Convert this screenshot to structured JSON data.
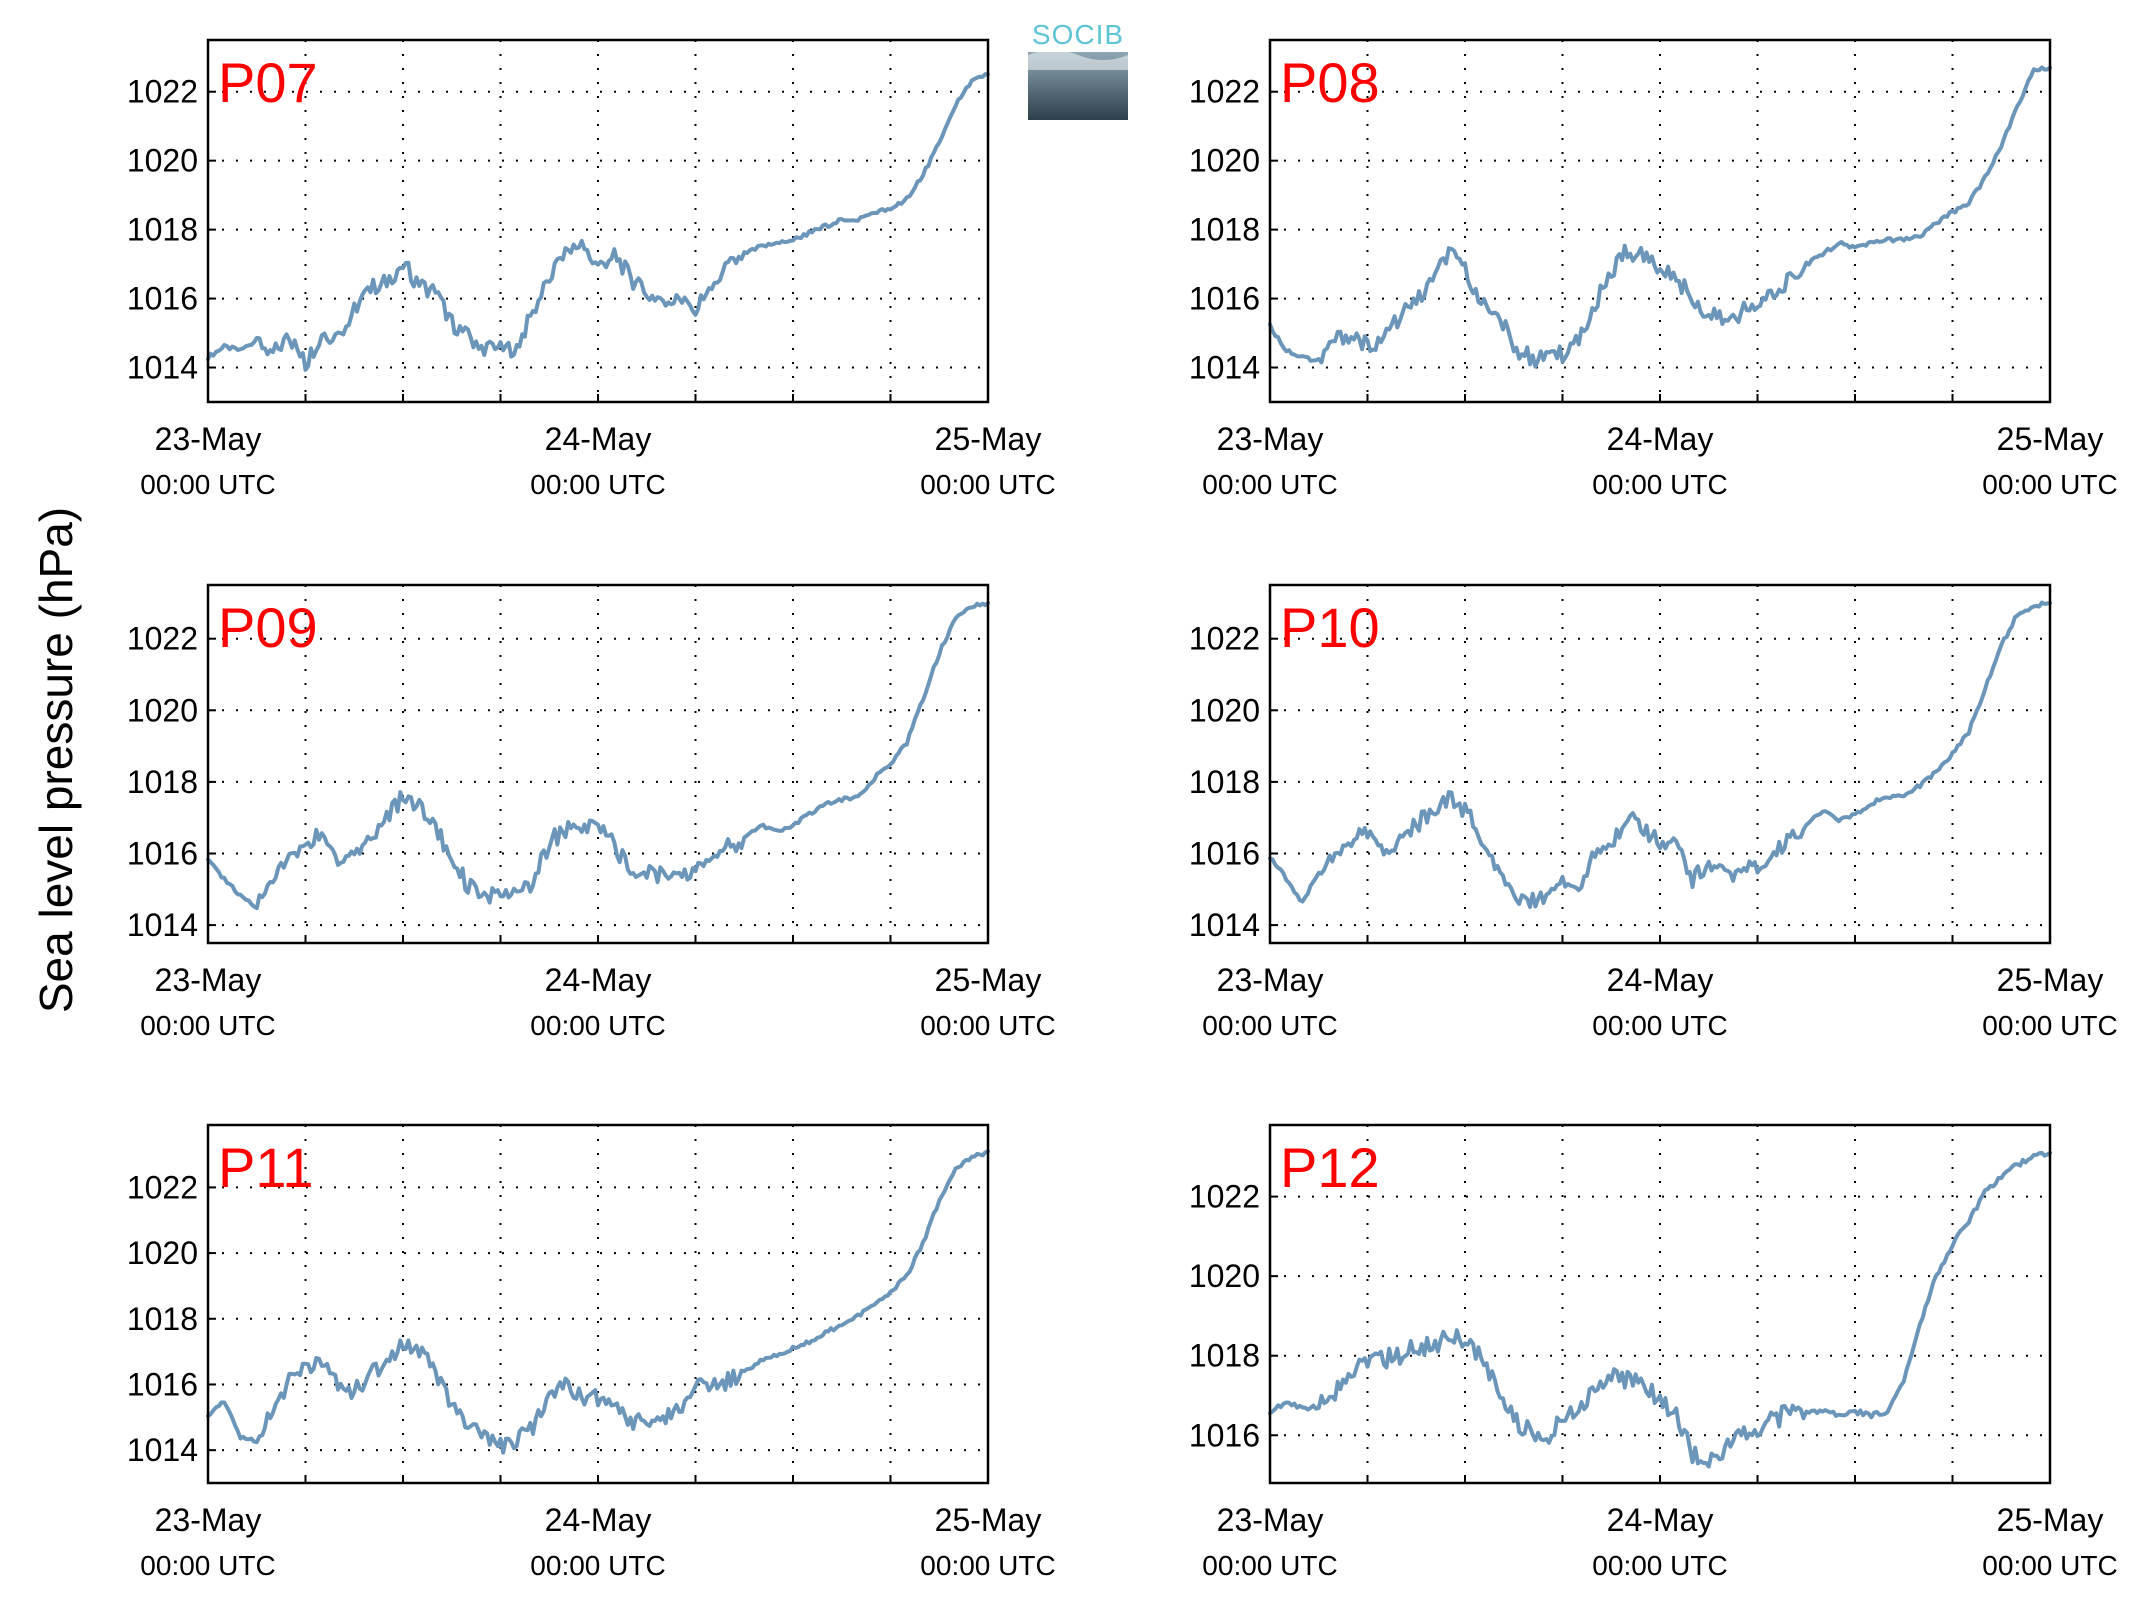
{
  "figure": {
    "ylabel": "Sea level pressure (hPa)",
    "logo_text": "SOCIB",
    "line_color": "#6b96b9",
    "title_color": "#ff0000"
  },
  "chart_data": [
    {
      "type": "line",
      "title": "P07",
      "x": [
        0,
        1,
        2,
        3,
        4,
        5,
        6,
        7,
        8,
        9,
        10,
        11,
        12,
        13,
        14,
        15,
        16,
        17,
        18,
        19,
        20,
        21,
        22,
        23,
        24,
        25,
        26,
        27,
        28,
        29,
        30,
        31,
        32,
        33,
        34,
        35,
        36,
        37,
        38,
        39,
        40,
        41,
        42,
        43,
        44,
        45,
        46,
        47,
        48
      ],
      "y": [
        1014.3,
        1014.6,
        1014.5,
        1014.8,
        1014.4,
        1014.9,
        1014.1,
        1015.0,
        1014.9,
        1015.7,
        1016.3,
        1016.5,
        1017.0,
        1016.4,
        1016.2,
        1015.3,
        1014.9,
        1014.6,
        1014.5,
        1014.6,
        1015.6,
        1016.6,
        1017.4,
        1017.5,
        1016.9,
        1017.3,
        1016.6,
        1016.1,
        1016.0,
        1015.9,
        1015.7,
        1016.3,
        1016.9,
        1017.3,
        1017.5,
        1017.6,
        1017.7,
        1017.9,
        1018.1,
        1018.3,
        1018.3,
        1018.5,
        1018.6,
        1018.9,
        1019.6,
        1020.5,
        1021.6,
        1022.3,
        1022.5
      ],
      "xlim": [
        0,
        48
      ],
      "ylim": [
        1013,
        1023.5
      ],
      "yticks": [
        "1014",
        "1016",
        "1018",
        "1020",
        "1022"
      ],
      "xticklabels": [
        {
          "date": "23-May",
          "time": "00:00 UTC"
        },
        {
          "date": "24-May",
          "time": "00:00 UTC"
        },
        {
          "date": "25-May",
          "time": "00:00 UTC"
        }
      ],
      "grid": true
    },
    {
      "type": "line",
      "title": "P08",
      "x": [
        0,
        1,
        2,
        3,
        4,
        5,
        6,
        7,
        8,
        9,
        10,
        11,
        12,
        13,
        14,
        15,
        16,
        17,
        18,
        19,
        20,
        21,
        22,
        23,
        24,
        25,
        26,
        27,
        28,
        29,
        30,
        31,
        32,
        33,
        34,
        35,
        36,
        37,
        38,
        39,
        40,
        41,
        42,
        43,
        44,
        45,
        46,
        47,
        48
      ],
      "y": [
        1015.2,
        1014.5,
        1014.3,
        1014.2,
        1014.8,
        1015.0,
        1014.6,
        1014.9,
        1015.5,
        1015.9,
        1016.5,
        1017.3,
        1016.8,
        1016.0,
        1015.6,
        1014.6,
        1014.3,
        1014.2,
        1014.4,
        1014.8,
        1015.8,
        1016.8,
        1017.4,
        1017.2,
        1016.9,
        1016.6,
        1016.0,
        1015.5,
        1015.4,
        1015.6,
        1015.8,
        1016.2,
        1016.6,
        1017.0,
        1017.3,
        1017.6,
        1017.5,
        1017.6,
        1017.7,
        1017.7,
        1017.8,
        1018.2,
        1018.5,
        1018.8,
        1019.5,
        1020.4,
        1021.6,
        1022.6,
        1022.7
      ],
      "xlim": [
        0,
        48
      ],
      "ylim": [
        1013,
        1023.5
      ],
      "yticks": [
        "1014",
        "1016",
        "1018",
        "1020",
        "1022"
      ],
      "xticklabels": [
        {
          "date": "23-May",
          "time": "00:00 UTC"
        },
        {
          "date": "24-May",
          "time": "00:00 UTC"
        },
        {
          "date": "25-May",
          "time": "00:00 UTC"
        }
      ],
      "grid": true
    },
    {
      "type": "line",
      "title": "P09",
      "x": [
        0,
        1,
        2,
        3,
        4,
        5,
        6,
        7,
        8,
        9,
        10,
        11,
        12,
        13,
        14,
        15,
        16,
        17,
        18,
        19,
        20,
        21,
        22,
        23,
        24,
        25,
        26,
        27,
        28,
        29,
        30,
        31,
        32,
        33,
        34,
        35,
        36,
        37,
        38,
        39,
        40,
        41,
        42,
        43,
        44,
        45,
        46,
        47,
        48
      ],
      "y": [
        1015.8,
        1015.3,
        1014.8,
        1014.5,
        1015.3,
        1015.8,
        1016.3,
        1016.5,
        1015.8,
        1016.0,
        1016.4,
        1017.0,
        1017.6,
        1017.4,
        1016.7,
        1015.9,
        1015.1,
        1014.9,
        1014.7,
        1014.9,
        1015.2,
        1016.3,
        1016.7,
        1016.6,
        1016.8,
        1016.3,
        1015.4,
        1015.5,
        1015.4,
        1015.3,
        1015.5,
        1016.0,
        1016.2,
        1016.4,
        1016.8,
        1016.6,
        1016.8,
        1017.1,
        1017.4,
        1017.5,
        1017.6,
        1018.1,
        1018.5,
        1019.1,
        1020.3,
        1021.6,
        1022.6,
        1022.9,
        1023.0
      ],
      "xlim": [
        0,
        48
      ],
      "ylim": [
        1013.5,
        1023.5
      ],
      "yticks": [
        "1014",
        "1016",
        "1018",
        "1020",
        "1022"
      ],
      "xticklabels": [
        {
          "date": "23-May",
          "time": "00:00 UTC"
        },
        {
          "date": "24-May",
          "time": "00:00 UTC"
        },
        {
          "date": "25-May",
          "time": "00:00 UTC"
        }
      ],
      "grid": true
    },
    {
      "type": "line",
      "title": "P10",
      "x": [
        0,
        1,
        2,
        3,
        4,
        5,
        6,
        7,
        8,
        9,
        10,
        11,
        12,
        13,
        14,
        15,
        16,
        17,
        18,
        19,
        20,
        21,
        22,
        23,
        24,
        25,
        26,
        27,
        28,
        29,
        30,
        31,
        32,
        33,
        34,
        35,
        36,
        37,
        38,
        39,
        40,
        41,
        42,
        43,
        44,
        45,
        46,
        47,
        48
      ],
      "y": [
        1015.9,
        1015.3,
        1014.6,
        1015.5,
        1016.0,
        1016.3,
        1016.6,
        1016.0,
        1016.3,
        1016.8,
        1017.2,
        1017.6,
        1017.2,
        1016.5,
        1015.5,
        1014.8,
        1014.6,
        1014.9,
        1015.2,
        1014.8,
        1016.0,
        1016.2,
        1017.1,
        1016.6,
        1016.3,
        1016.4,
        1015.3,
        1015.7,
        1015.4,
        1015.5,
        1015.6,
        1016.1,
        1016.4,
        1016.8,
        1017.2,
        1016.9,
        1017.1,
        1017.4,
        1017.6,
        1017.6,
        1017.9,
        1018.3,
        1018.8,
        1019.4,
        1020.6,
        1021.8,
        1022.7,
        1022.9,
        1023.0
      ],
      "xlim": [
        0,
        48
      ],
      "ylim": [
        1013.5,
        1023.5
      ],
      "yticks": [
        "1014",
        "1016",
        "1018",
        "1020",
        "1022"
      ],
      "xticklabels": [
        {
          "date": "23-May",
          "time": "00:00 UTC"
        },
        {
          "date": "24-May",
          "time": "00:00 UTC"
        },
        {
          "date": "25-May",
          "time": "00:00 UTC"
        }
      ],
      "grid": true
    },
    {
      "type": "line",
      "title": "P11",
      "x": [
        0,
        1,
        2,
        3,
        4,
        5,
        6,
        7,
        8,
        9,
        10,
        11,
        12,
        13,
        14,
        15,
        16,
        17,
        18,
        19,
        20,
        21,
        22,
        23,
        24,
        25,
        26,
        27,
        28,
        29,
        30,
        31,
        32,
        33,
        34,
        35,
        36,
        37,
        38,
        39,
        40,
        41,
        42,
        43,
        44,
        45,
        46,
        47,
        48
      ],
      "y": [
        1015.0,
        1015.5,
        1014.4,
        1014.3,
        1015.3,
        1016.1,
        1016.5,
        1016.6,
        1016.0,
        1015.8,
        1016.3,
        1016.7,
        1017.3,
        1017.1,
        1016.3,
        1015.3,
        1014.8,
        1014.4,
        1014.1,
        1014.3,
        1014.7,
        1015.8,
        1016.0,
        1015.6,
        1015.6,
        1015.3,
        1014.8,
        1014.9,
        1015.0,
        1015.3,
        1016.0,
        1015.9,
        1016.1,
        1016.4,
        1016.7,
        1016.9,
        1017.1,
        1017.3,
        1017.6,
        1017.8,
        1018.1,
        1018.4,
        1018.8,
        1019.3,
        1020.3,
        1021.6,
        1022.6,
        1022.9,
        1023.1
      ],
      "xlim": [
        0,
        48
      ],
      "ylim": [
        1013,
        1023.9
      ],
      "yticks": [
        "1014",
        "1016",
        "1018",
        "1020",
        "1022"
      ],
      "xticklabels": [
        {
          "date": "23-May",
          "time": "00:00 UTC"
        },
        {
          "date": "24-May",
          "time": "00:00 UTC"
        },
        {
          "date": "25-May",
          "time": "00:00 UTC"
        }
      ],
      "grid": true
    },
    {
      "type": "line",
      "title": "P12",
      "x": [
        0,
        1,
        2,
        3,
        4,
        5,
        6,
        7,
        8,
        9,
        10,
        11,
        12,
        13,
        14,
        15,
        16,
        17,
        18,
        19,
        20,
        21,
        22,
        23,
        24,
        25,
        26,
        27,
        28,
        29,
        30,
        31,
        32,
        33,
        34,
        35,
        36,
        37,
        38,
        39,
        40,
        41,
        42,
        43,
        44,
        45,
        46,
        47,
        48
      ],
      "y": [
        1016.6,
        1016.8,
        1016.7,
        1016.7,
        1017.1,
        1017.6,
        1017.8,
        1017.9,
        1018.0,
        1018.2,
        1018.3,
        1018.4,
        1018.4,
        1017.9,
        1017.2,
        1016.4,
        1016.1,
        1015.8,
        1016.4,
        1016.7,
        1017.1,
        1017.6,
        1017.4,
        1017.2,
        1016.9,
        1016.5,
        1015.5,
        1015.4,
        1015.6,
        1016.0,
        1016.2,
        1016.4,
        1016.6,
        1016.6,
        1016.6,
        1016.5,
        1016.6,
        1016.5,
        1016.6,
        1017.4,
        1018.8,
        1020.0,
        1020.8,
        1021.4,
        1022.1,
        1022.5,
        1022.8,
        1023.0,
        1023.1
      ],
      "xlim": [
        0,
        48
      ],
      "ylim": [
        1014.8,
        1023.8
      ],
      "yticks": [
        "1016",
        "1018",
        "1020",
        "1022"
      ],
      "xticklabels": [
        {
          "date": "23-May",
          "time": "00:00 UTC"
        },
        {
          "date": "24-May",
          "time": "00:00 UTC"
        },
        {
          "date": "25-May",
          "time": "00:00 UTC"
        }
      ],
      "grid": true
    }
  ]
}
